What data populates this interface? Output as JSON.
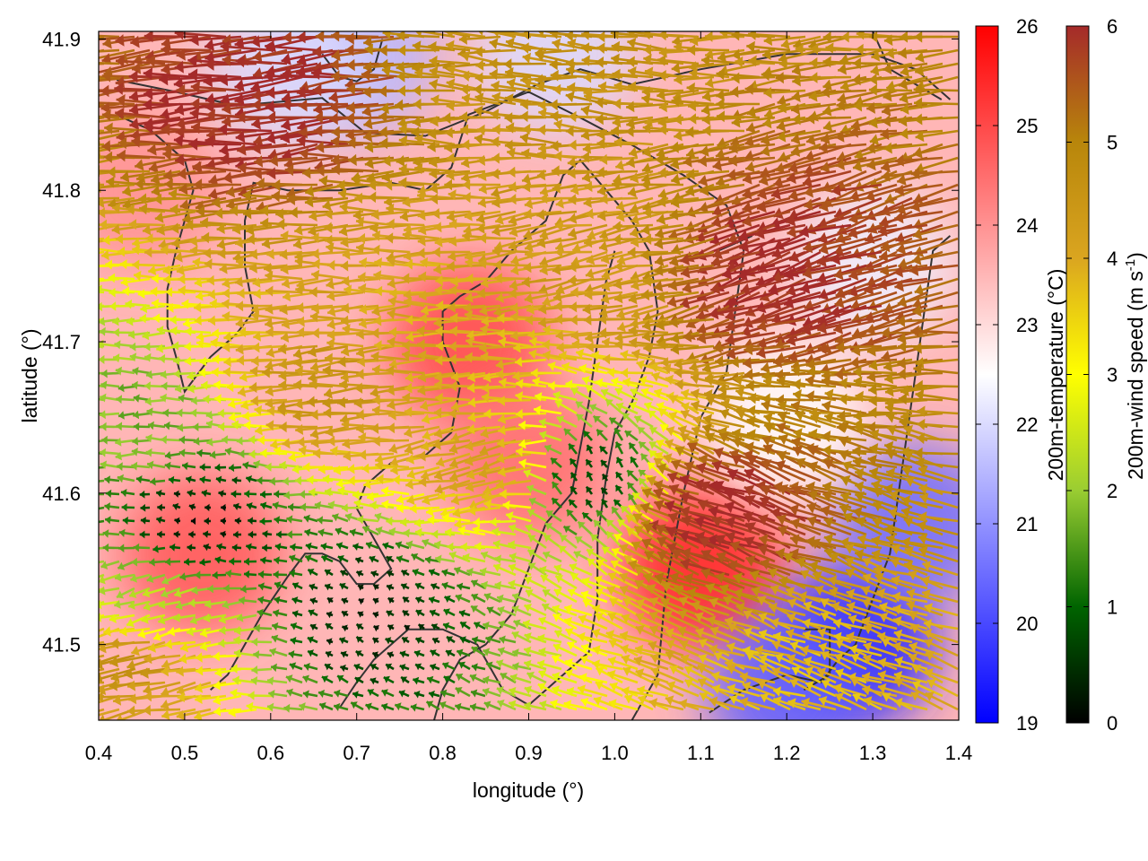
{
  "chart_data": {
    "type": "heatmap",
    "subtype": "scalar field with colored wind vectors and contour lines",
    "title": "",
    "xlabel": "longitude (°)",
    "ylabel": "latitude (°)",
    "xlim": [
      0.4,
      1.4
    ],
    "ylim": [
      41.45,
      41.905
    ],
    "x_ticks": [
      "0.4",
      "0.5",
      "0.6",
      "0.7",
      "0.8",
      "0.9",
      "1.0",
      "1.1",
      "1.2",
      "1.3",
      "1.4"
    ],
    "y_ticks": [
      "41.5",
      "41.6",
      "41.7",
      "41.8",
      "41.9"
    ],
    "grid": false,
    "colorbars": [
      {
        "label": "200m-temperature (°C)",
        "range": [
          19,
          26
        ],
        "ticks": [
          "19",
          "20",
          "21",
          "22",
          "23",
          "24",
          "25",
          "26"
        ],
        "colors": [
          "#0000ff",
          "#ffffff",
          "#ff0000"
        ]
      },
      {
        "label": "200m-wind speed (m s",
        "label_sup": "-1",
        "label_close": ")",
        "range": [
          0,
          6
        ],
        "ticks": [
          "0",
          "1",
          "2",
          "3",
          "4",
          "5",
          "6"
        ],
        "colors": [
          "#000000",
          "#006400",
          "#9acd32",
          "#ffff00",
          "#daa520",
          "#b8860b",
          "#a52a2a"
        ]
      }
    ],
    "temperature_field": {
      "background": 23.5,
      "regions": [
        {
          "lon": 0.83,
          "lat": 41.7,
          "temp": 25.0
        },
        {
          "lon": 0.52,
          "lat": 41.56,
          "temp": 24.8
        },
        {
          "lon": 1.1,
          "lat": 41.55,
          "temp": 25.5
        },
        {
          "lon": 0.9,
          "lat": 41.62,
          "temp": 24.5
        },
        {
          "lon": 0.45,
          "lat": 41.8,
          "temp": 24.0
        },
        {
          "lon": 1.28,
          "lat": 41.5,
          "temp": 19.5
        },
        {
          "lon": 1.2,
          "lat": 41.47,
          "temp": 20.3
        },
        {
          "lon": 1.35,
          "lat": 41.58,
          "temp": 20.5
        },
        {
          "lon": 0.7,
          "lat": 41.89,
          "temp": 21.5
        },
        {
          "lon": 0.93,
          "lat": 41.89,
          "temp": 22.0
        },
        {
          "lon": 1.3,
          "lat": 41.75,
          "temp": 22.3
        },
        {
          "lon": 1.2,
          "lat": 41.65,
          "temp": 22.5
        },
        {
          "lon": 0.62,
          "lat": 41.88,
          "temp": 22.0
        }
      ]
    },
    "wind_field": {
      "regions": [
        {
          "lon": 0.52,
          "lat": 41.58,
          "speed": 0.3,
          "dir_deg": 170
        },
        {
          "lon": 0.45,
          "lat": 41.64,
          "speed": 1.8,
          "dir_deg": 180
        },
        {
          "lon": 0.47,
          "lat": 41.53,
          "speed": 2.2,
          "dir_deg": 200
        },
        {
          "lon": 0.72,
          "lat": 41.52,
          "speed": 0.4,
          "dir_deg": 150
        },
        {
          "lon": 0.97,
          "lat": 41.61,
          "speed": 0.6,
          "dir_deg": 120
        },
        {
          "lon": 0.8,
          "lat": 41.71,
          "speed": 4.0,
          "dir_deg": 180
        },
        {
          "lon": 0.88,
          "lat": 41.62,
          "speed": 4.2,
          "dir_deg": 200
        },
        {
          "lon": 0.7,
          "lat": 41.67,
          "speed": 4.5,
          "dir_deg": 185
        },
        {
          "lon": 1.0,
          "lat": 41.76,
          "speed": 4.3,
          "dir_deg": 190
        },
        {
          "lon": 0.92,
          "lat": 41.88,
          "speed": 4.6,
          "dir_deg": 175
        },
        {
          "lon": 1.24,
          "lat": 41.48,
          "speed": 3.8,
          "dir_deg": 160
        },
        {
          "lon": 0.45,
          "lat": 41.49,
          "speed": 4.6,
          "dir_deg": 190
        },
        {
          "lon": 0.62,
          "lat": 41.86,
          "speed": 6.0,
          "dir_deg": 185
        },
        {
          "lon": 1.2,
          "lat": 41.75,
          "speed": 6.0,
          "dir_deg": 200
        },
        {
          "lon": 1.15,
          "lat": 41.58,
          "speed": 6.0,
          "dir_deg": 160
        }
      ]
    },
    "contours": [
      [
        [
          0.421,
          41.873
        ],
        [
          0.49,
          41.865
        ],
        [
          0.56,
          41.856
        ],
        [
          0.66,
          41.861
        ],
        [
          0.71,
          41.838
        ],
        [
          0.78,
          41.836
        ],
        [
          0.85,
          41.852
        ],
        [
          0.91,
          41.87
        ],
        [
          0.96,
          41.88
        ],
        [
          1.02,
          41.87
        ],
        [
          1.1,
          41.88
        ],
        [
          1.2,
          41.89
        ],
        [
          1.3,
          41.89
        ],
        [
          1.35,
          41.88
        ],
        [
          1.39,
          41.86
        ]
      ],
      [
        [
          0.42,
          41.85
        ],
        [
          0.46,
          41.84
        ],
        [
          0.48,
          41.83
        ],
        [
          0.5,
          41.82
        ],
        [
          0.51,
          41.8
        ],
        [
          0.5,
          41.78
        ],
        [
          0.49,
          41.76
        ],
        [
          0.48,
          41.735
        ],
        [
          0.48,
          41.71
        ],
        [
          0.49,
          41.69
        ],
        [
          0.5,
          41.667
        ],
        [
          0.53,
          41.69
        ],
        [
          0.56,
          41.705
        ],
        [
          0.58,
          41.72
        ],
        [
          0.57,
          41.75
        ],
        [
          0.57,
          41.78
        ],
        [
          0.58,
          41.805
        ],
        [
          0.62,
          41.8
        ],
        [
          0.68,
          41.8
        ],
        [
          0.74,
          41.805
        ],
        [
          0.78,
          41.8
        ],
        [
          0.81,
          41.815
        ],
        [
          0.83,
          41.85
        ],
        [
          0.9,
          41.865
        ],
        [
          0.96,
          41.848
        ],
        [
          1.02,
          41.83
        ],
        [
          1.08,
          41.81
        ],
        [
          1.13,
          41.79
        ],
        [
          1.15,
          41.76
        ],
        [
          1.14,
          41.72
        ],
        [
          1.13,
          41.68
        ],
        [
          1.1,
          41.65
        ],
        [
          1.08,
          41.6
        ],
        [
          1.06,
          41.54
        ],
        [
          1.05,
          41.48
        ],
        [
          1.02,
          41.45
        ]
      ],
      [
        [
          0.53,
          41.47
        ],
        [
          0.55,
          41.48
        ],
        [
          0.57,
          41.5
        ],
        [
          0.59,
          41.52
        ],
        [
          0.62,
          41.545
        ],
        [
          0.64,
          41.56
        ],
        [
          0.66,
          41.56
        ],
        [
          0.68,
          41.555
        ],
        [
          0.7,
          41.54
        ],
        [
          0.72,
          41.54
        ],
        [
          0.74,
          41.55
        ],
        [
          0.72,
          41.57
        ],
        [
          0.7,
          41.59
        ],
        [
          0.71,
          41.605
        ],
        [
          0.74,
          41.62
        ],
        [
          0.78,
          41.625
        ],
        [
          0.81,
          41.64
        ],
        [
          0.82,
          41.67
        ],
        [
          0.8,
          41.7
        ],
        [
          0.8,
          41.72
        ],
        [
          0.82,
          41.73
        ],
        [
          0.85,
          41.74
        ],
        [
          0.88,
          41.76
        ],
        [
          0.92,
          41.78
        ],
        [
          0.94,
          41.81
        ],
        [
          0.96,
          41.82
        ],
        [
          0.99,
          41.8
        ],
        [
          1.02,
          41.78
        ],
        [
          1.04,
          41.76
        ],
        [
          1.05,
          41.72
        ],
        [
          1.04,
          41.69
        ],
        [
          1.02,
          41.66
        ],
        [
          1.0,
          41.64
        ],
        [
          0.99,
          41.61
        ],
        [
          0.98,
          41.57
        ],
        [
          0.98,
          41.53
        ],
        [
          0.97,
          41.495
        ],
        [
          0.94,
          41.48
        ],
        [
          0.92,
          41.47
        ],
        [
          0.9,
          41.46
        ],
        [
          0.87,
          41.47
        ],
        [
          0.84,
          41.5
        ],
        [
          0.8,
          41.51
        ],
        [
          0.76,
          41.51
        ],
        [
          0.74,
          41.5
        ],
        [
          0.72,
          41.49
        ],
        [
          0.7,
          41.475
        ],
        [
          0.68,
          41.458
        ]
      ],
      [
        [
          0.79,
          41.45
        ],
        [
          0.8,
          41.47
        ],
        [
          0.82,
          41.49
        ],
        [
          0.85,
          41.5
        ],
        [
          0.88,
          41.52
        ],
        [
          0.9,
          41.55
        ],
        [
          0.92,
          41.58
        ],
        [
          0.95,
          41.6
        ],
        [
          0.96,
          41.63
        ],
        [
          0.97,
          41.66
        ],
        [
          0.98,
          41.7
        ],
        [
          0.99,
          41.74
        ],
        [
          1.0,
          41.76
        ]
      ],
      [
        [
          1.11,
          41.455
        ],
        [
          1.15,
          41.47
        ],
        [
          1.2,
          41.48
        ],
        [
          1.24,
          41.475
        ],
        [
          1.26,
          41.49
        ],
        [
          1.28,
          41.5
        ],
        [
          1.3,
          41.53
        ],
        [
          1.32,
          41.56
        ],
        [
          1.33,
          41.6
        ],
        [
          1.34,
          41.64
        ],
        [
          1.35,
          41.68
        ],
        [
          1.36,
          41.72
        ],
        [
          1.37,
          41.76
        ],
        [
          1.39,
          41.77
        ]
      ],
      [
        [
          0.66,
          41.89
        ],
        [
          0.68,
          41.875
        ],
        [
          0.7,
          41.872
        ],
        [
          0.72,
          41.88
        ],
        [
          0.73,
          41.9
        ]
      ],
      [
        [
          1.12,
          41.76
        ],
        [
          1.14,
          41.765
        ],
        [
          1.16,
          41.77
        ]
      ],
      [
        [
          1.22,
          41.51
        ],
        [
          1.25,
          41.51
        ],
        [
          1.25,
          41.48
        ],
        [
          1.22,
          41.47
        ]
      ],
      [
        [
          1.3,
          41.905
        ],
        [
          1.32,
          41.88
        ],
        [
          1.35,
          41.87
        ],
        [
          1.38,
          41.86
        ]
      ]
    ]
  }
}
